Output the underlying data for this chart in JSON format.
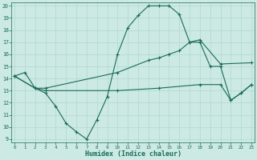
{
  "xlabel": "Humidex (Indice chaleur)",
  "bg_color": "#cce9e4",
  "grid_color": "#b0d8d0",
  "line_color": "#1a6b5a",
  "line1_x": [
    0,
    1,
    2,
    3,
    4,
    5,
    6,
    7,
    8,
    9,
    10,
    11,
    12,
    13,
    14,
    15,
    16,
    17,
    18,
    19,
    20,
    21,
    22,
    23
  ],
  "line1_y": [
    14.2,
    14.5,
    13.2,
    12.8,
    11.7,
    10.3,
    9.6,
    9.0,
    10.6,
    12.5,
    16.0,
    18.2,
    19.2,
    20.0,
    20.0,
    20.0,
    19.3,
    17.0,
    17.0,
    15.0,
    15.0,
    12.2,
    12.8,
    13.5
  ],
  "line2_x": [
    0,
    2,
    3,
    10,
    13,
    14,
    15,
    16,
    17,
    18,
    20,
    23
  ],
  "line2_y": [
    14.2,
    13.2,
    13.2,
    14.5,
    15.5,
    15.7,
    16.0,
    16.3,
    17.0,
    17.2,
    15.2,
    15.3
  ],
  "line3_x": [
    0,
    2,
    3,
    10,
    14,
    18,
    20,
    21,
    22,
    23
  ],
  "line3_y": [
    14.2,
    13.2,
    13.0,
    13.0,
    13.2,
    13.5,
    13.5,
    12.2,
    12.8,
    13.5
  ],
  "xlim": [
    0,
    23
  ],
  "ylim": [
    9,
    20
  ],
  "yticks": [
    9,
    10,
    11,
    12,
    13,
    14,
    15,
    16,
    17,
    18,
    19,
    20
  ],
  "xticks": [
    0,
    1,
    2,
    3,
    4,
    5,
    6,
    7,
    8,
    9,
    10,
    11,
    12,
    13,
    14,
    15,
    16,
    17,
    18,
    19,
    20,
    21,
    22,
    23
  ]
}
